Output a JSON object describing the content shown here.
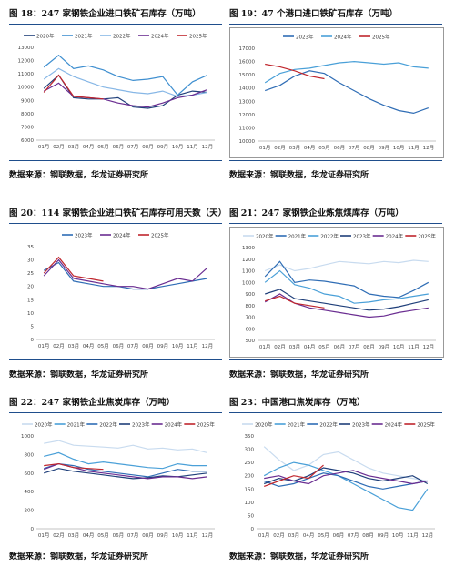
{
  "panels": [
    {
      "title": "图 18：247 家钢铁企业进口铁矿石库存（万吨）",
      "source": "数据来源：钢联数据，华龙证券研究所",
      "chart_data": {
        "type": "line",
        "ylim": [
          6000,
          13000
        ],
        "yticks": [
          6000,
          7000,
          8000,
          9000,
          10000,
          11000,
          12000,
          13000
        ],
        "x": [
          "01月",
          "02月",
          "03月",
          "04月",
          "05月",
          "06月",
          "07月",
          "08月",
          "09月",
          "10月",
          "11月",
          "12月"
        ],
        "legend_placement": "top",
        "series": [
          {
            "name": "2020年",
            "color": "#1f3f7a",
            "values": [
              9900,
              10900,
              9200,
              9100,
              9100,
              9200,
              8500,
              8400,
              8600,
              9400,
              9700,
              9600
            ]
          },
          {
            "name": "2021年",
            "color": "#3f8fd0",
            "values": [
              11500,
              12400,
              11400,
              11600,
              11300,
              10800,
              10500,
              10600,
              10800,
              9400,
              10400,
              10900
            ]
          },
          {
            "name": "2022年",
            "color": "#87b7e6",
            "values": [
              10600,
              11400,
              10800,
              10400,
              10000,
              9800,
              9600,
              9500,
              9700,
              9300,
              9400,
              9600
            ]
          },
          {
            "name": "2024年",
            "color": "#6a2d91",
            "values": [
              9700,
              10300,
              9300,
              9200,
              9100,
              8800,
              8600,
              8500,
              8800,
              9200,
              9400,
              9800
            ]
          },
          {
            "name": "2025年",
            "color": "#c0262d",
            "values": [
              9600,
              10900,
              9300,
              9200,
              9100,
              null,
              null,
              null,
              null,
              null,
              null,
              null
            ]
          }
        ]
      }
    },
    {
      "title": "图 19：47 个港口进口铁矿石库存（万吨）",
      "source": "数据来源：钢联数据，华龙证券研究所",
      "chart_data": {
        "type": "line",
        "ylim": [
          10000,
          17000
        ],
        "yticks": [
          10000,
          10500,
          11000,
          11500,
          12000,
          12500,
          13000,
          13500,
          14000,
          14500,
          15000,
          15500,
          16000,
          16500,
          17000
        ],
        "x": [
          "01月",
          "02月",
          "03月",
          "04月",
          "05月",
          "06月",
          "07月",
          "08月",
          "09月",
          "10月",
          "11月",
          "12月"
        ],
        "legend_placement": "top",
        "series": [
          {
            "name": "2023年",
            "color": "#2f6db5",
            "values": [
              13800,
              14200,
              14900,
              15300,
              15100,
              14400,
              13800,
              13200,
              12700,
              12300,
              12100,
              12500
            ]
          },
          {
            "name": "2024年",
            "color": "#4aa0d8",
            "values": [
              14400,
              15100,
              15400,
              15500,
              15700,
              15900,
              16000,
              15900,
              15800,
              15900,
              15600,
              15500
            ]
          },
          {
            "name": "2025年",
            "color": "#c0262d",
            "values": [
              15800,
              15600,
              15300,
              14900,
              14700,
              null,
              null,
              null,
              null,
              null,
              null,
              null
            ]
          }
        ]
      }
    },
    {
      "title": "图 20：114 家钢铁企业进口铁矿石库存可用天数（天）",
      "source": "数据来源：钢联数据，华龙证券研究所",
      "chart_data": {
        "type": "line",
        "ylim": [
          0,
          35
        ],
        "yticks": [
          0,
          5,
          10,
          15,
          20,
          25,
          30,
          35
        ],
        "x": [
          "01月",
          "02月",
          "03月",
          "04月",
          "05月",
          "06月",
          "07月",
          "08月",
          "09月",
          "10月",
          "11月",
          "12月"
        ],
        "legend_placement": "top",
        "series": [
          {
            "name": "2023年",
            "color": "#2f6db5",
            "values": [
              26,
              29,
              22,
              21,
              20,
              20,
              19,
              19,
              20,
              21,
              22,
              23
            ]
          },
          {
            "name": "2024年",
            "color": "#6a2d91",
            "values": [
              24,
              30,
              23,
              22,
              21,
              20,
              20,
              19,
              21,
              23,
              22,
              27
            ]
          },
          {
            "name": "2025年",
            "color": "#c0262d",
            "values": [
              25,
              31,
              24,
              23,
              22,
              null,
              null,
              null,
              null,
              null,
              null,
              null
            ]
          }
        ]
      }
    },
    {
      "title": "图 21：247 家钢铁企业炼焦煤库存（万吨）",
      "source": "数据来源：钢联数据，华龙证券研究所",
      "chart_data": {
        "type": "line",
        "ylim": [
          500,
          1300
        ],
        "yticks": [
          500,
          600,
          700,
          800,
          900,
          1000,
          1100,
          1200,
          1300
        ],
        "x": [
          "01月",
          "02月",
          "03月",
          "04月",
          "05月",
          "06月",
          "07月",
          "08月",
          "09月",
          "10月",
          "11月",
          "12月"
        ],
        "legend_placement": "top",
        "series": [
          {
            "name": "2020年",
            "color": "#c8dbef",
            "values": [
              1100,
              1150,
              1100,
              1120,
              1150,
              1180,
              1170,
              1160,
              1180,
              1170,
              1190,
              1180
            ]
          },
          {
            "name": "2021年",
            "color": "#2f6db5",
            "values": [
              1050,
              1180,
              1000,
              1020,
              1010,
              990,
              970,
              900,
              880,
              870,
              930,
              1000
            ]
          },
          {
            "name": "2022年",
            "color": "#4aa0d8",
            "values": [
              1000,
              1100,
              980,
              950,
              900,
              880,
              820,
              830,
              850,
              860,
              880,
              900
            ]
          },
          {
            "name": "2023年",
            "color": "#1f3f7a",
            "values": [
              900,
              940,
              860,
              840,
              820,
              800,
              780,
              760,
              770,
              790,
              820,
              850
            ]
          },
          {
            "name": "2024年",
            "color": "#6a2d91",
            "values": [
              830,
              900,
              820,
              780,
              760,
              740,
              720,
              700,
              710,
              740,
              760,
              780
            ]
          },
          {
            "name": "2025年",
            "color": "#c0262d",
            "values": [
              840,
              880,
              820,
              800,
              780,
              null,
              null,
              null,
              null,
              null,
              null,
              null
            ]
          }
        ]
      }
    },
    {
      "title": "图 22：247 家钢铁企业焦炭库存（万吨）",
      "source": "数据来源：钢联数据，华龙证券研究所",
      "chart_data": {
        "type": "line",
        "ylim": [
          0,
          1000
        ],
        "yticks": [
          0,
          100,
          200,
          300,
          400,
          500,
          600,
          700,
          800,
          900,
          1000
        ],
        "x": [
          "01月",
          "02月",
          "03月",
          "04月",
          "05月",
          "06月",
          "07月",
          "08月",
          "09月",
          "10月",
          "11月",
          "12月"
        ],
        "legend_placement": "top",
        "series": [
          {
            "name": "2020年",
            "color": "#c8dbef",
            "values": [
              920,
              950,
              900,
              890,
              880,
              870,
              900,
              860,
              870,
              850,
              860,
              820
            ]
          },
          {
            "name": "2021年",
            "color": "#4aa0d8",
            "values": [
              780,
              820,
              750,
              700,
              720,
              700,
              680,
              660,
              650,
              700,
              680,
              680
            ]
          },
          {
            "name": "2022年",
            "color": "#2f6db5",
            "values": [
              650,
              700,
              680,
              640,
              620,
              600,
              580,
              560,
              600,
              640,
              620,
              620
            ]
          },
          {
            "name": "2023年",
            "color": "#1f3f7a",
            "values": [
              600,
              650,
              620,
              600,
              580,
              560,
              540,
              550,
              570,
              560,
              580,
              600
            ]
          },
          {
            "name": "2024年",
            "color": "#6a2d91",
            "values": [
              640,
              700,
              660,
              620,
              600,
              580,
              560,
              540,
              560,
              560,
              540,
              560
            ]
          },
          {
            "name": "2025年",
            "color": "#c0262d",
            "values": [
              680,
              700,
              660,
              650,
              640,
              null,
              null,
              null,
              null,
              null,
              null,
              null
            ]
          }
        ]
      }
    },
    {
      "title": "图 23：中国港口焦炭库存（万吨）",
      "source": "数据来源：钢联数据，华龙证券研究所",
      "chart_data": {
        "type": "line",
        "ylim": [
          0,
          350
        ],
        "yticks": [
          0,
          50,
          100,
          150,
          200,
          250,
          300,
          350
        ],
        "x": [
          "01月",
          "02月",
          "03月",
          "04月",
          "05月",
          "06月",
          "07月",
          "08月",
          "09月",
          "10月",
          "11月",
          "12月"
        ],
        "legend_placement": "top",
        "series": [
          {
            "name": "2020年",
            "color": "#c8dbef",
            "values": [
              310,
              260,
              220,
              240,
              280,
              290,
              260,
              230,
              210,
              200,
              190,
              180
            ]
          },
          {
            "name": "2021年",
            "color": "#4aa0d8",
            "values": [
              200,
              230,
              250,
              240,
              220,
              200,
              170,
              140,
              110,
              80,
              70,
              150
            ]
          },
          {
            "name": "2022年",
            "color": "#2f6db5",
            "values": [
              180,
              160,
              170,
              190,
              210,
              200,
              180,
              160,
              150,
              160,
              170,
              180
            ]
          },
          {
            "name": "2023年",
            "color": "#1f3f7a",
            "values": [
              170,
              190,
              180,
              200,
              230,
              220,
              210,
              190,
              180,
              190,
              200,
              170
            ]
          },
          {
            "name": "2024年",
            "color": "#6a2d91",
            "values": [
              190,
              200,
              180,
              170,
              200,
              210,
              220,
              200,
              190,
              180,
              170,
              180
            ]
          },
          {
            "name": "2025年",
            "color": "#c0262d",
            "values": [
              160,
              180,
              200,
              190,
              240,
              null,
              null,
              null,
              null,
              null,
              null,
              null
            ]
          }
        ]
      }
    }
  ]
}
